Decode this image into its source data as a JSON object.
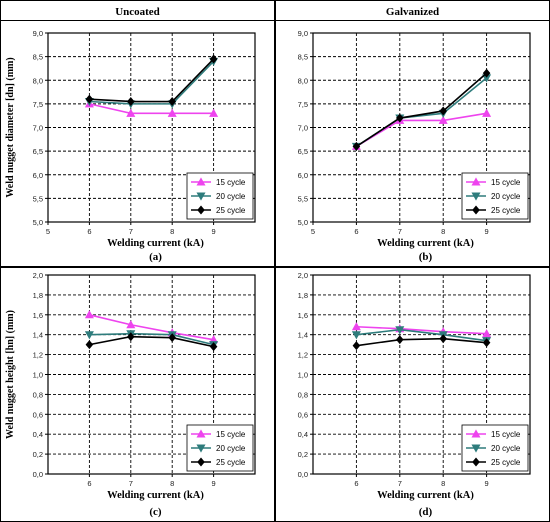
{
  "columns": [
    "Uncoated",
    "Galvanized"
  ],
  "ylabels": [
    "Weld nugget diameter [dn] (mm)",
    "Weld nugget height [hn] (mm)"
  ],
  "colors": {
    "15 cycle": "#ee44ee",
    "20 cycle": "#2e7c7c",
    "25 cycle": "#000000"
  },
  "chart_data": [
    {
      "type": "line",
      "column_title": "Uncoated",
      "panel_label": "(a)",
      "xlabel": "Welding current (kA)",
      "ylabel": "Weld nugget diameter [dn] (mm)",
      "xlim": [
        5,
        10
      ],
      "ylim": [
        5.0,
        9.0
      ],
      "xticks": [
        "5",
        "6",
        "7",
        "8",
        "9"
      ],
      "yticks": [
        "5,0",
        "5,5",
        "6,0",
        "6,5",
        "7,0",
        "7,5",
        "8,0",
        "8,5",
        "9,0"
      ],
      "legend_position": "bottom-right",
      "x": [
        6,
        7,
        8,
        9
      ],
      "series": [
        {
          "name": "15 cycle",
          "values": [
            7.5,
            7.3,
            7.3,
            7.3
          ]
        },
        {
          "name": "20 cycle",
          "values": [
            7.55,
            7.5,
            7.5,
            8.4
          ]
        },
        {
          "name": "25 cycle",
          "values": [
            7.6,
            7.55,
            7.55,
            8.45
          ]
        }
      ]
    },
    {
      "type": "line",
      "column_title": "Galvanized",
      "panel_label": "(b)",
      "xlabel": "Welding current (kA)",
      "ylabel": "",
      "xlim": [
        5,
        10
      ],
      "ylim": [
        5.0,
        9.0
      ],
      "xticks": [
        "5",
        "6",
        "7",
        "8",
        "9"
      ],
      "yticks": [
        "5,0",
        "5,5",
        "6,0",
        "6,5",
        "7,0",
        "7,5",
        "8,0",
        "8,5",
        "9,0"
      ],
      "legend_position": "bottom-right",
      "x": [
        6,
        7,
        8,
        9
      ],
      "series": [
        {
          "name": "15 cycle",
          "values": [
            6.6,
            7.15,
            7.15,
            7.3
          ]
        },
        {
          "name": "20 cycle",
          "values": [
            6.6,
            7.2,
            7.3,
            8.05
          ]
        },
        {
          "name": "25 cycle",
          "values": [
            6.6,
            7.2,
            7.35,
            8.15
          ]
        }
      ]
    },
    {
      "type": "line",
      "column_title": "",
      "panel_label": "(c)",
      "xlabel": "Welding current (kA)",
      "ylabel": "Weld nugget height [hn] (mm)",
      "xlim": [
        5,
        10
      ],
      "ylim": [
        0.0,
        2.0
      ],
      "xticks": [
        "6",
        "7",
        "8",
        "9"
      ],
      "yticks": [
        "0,0",
        "0,2",
        "0,4",
        "0,6",
        "0,8",
        "1,0",
        "1,2",
        "1,4",
        "1,6",
        "1,8",
        "2,0"
      ],
      "legend_position": "bottom-right",
      "x": [
        6,
        7,
        8,
        9
      ],
      "series": [
        {
          "name": "15 cycle",
          "values": [
            1.6,
            1.5,
            1.42,
            1.35
          ]
        },
        {
          "name": "20 cycle",
          "values": [
            1.4,
            1.41,
            1.4,
            1.3
          ]
        },
        {
          "name": "25 cycle",
          "values": [
            1.3,
            1.38,
            1.37,
            1.28
          ]
        }
      ]
    },
    {
      "type": "line",
      "column_title": "",
      "panel_label": "(d)",
      "xlabel": "Welding current (kA)",
      "ylabel": "",
      "xlim": [
        5,
        10
      ],
      "ylim": [
        0.0,
        2.0
      ],
      "xticks": [
        "6",
        "7",
        "8",
        "9"
      ],
      "yticks": [
        "0,0",
        "0,2",
        "0,4",
        "0,6",
        "0,8",
        "1,0",
        "1,2",
        "1,4",
        "1,6",
        "1,8",
        "2,0"
      ],
      "legend_position": "bottom-right",
      "x": [
        6,
        7,
        8,
        9
      ],
      "series": [
        {
          "name": "15 cycle",
          "values": [
            1.48,
            1.46,
            1.43,
            1.41
          ]
        },
        {
          "name": "20 cycle",
          "values": [
            1.4,
            1.45,
            1.4,
            1.34
          ]
        },
        {
          "name": "25 cycle",
          "values": [
            1.29,
            1.35,
            1.36,
            1.32
          ]
        }
      ]
    }
  ]
}
